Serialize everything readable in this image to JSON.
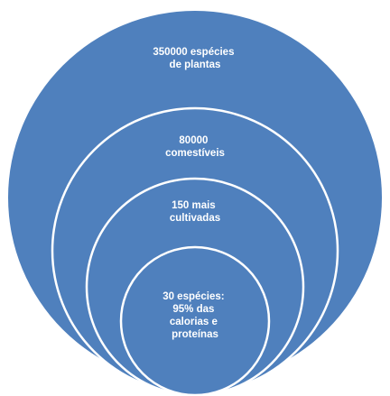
{
  "diagram": {
    "fill_color": "#4f80bd",
    "stroke_color": "#ffffff",
    "circles": [
      {
        "id": "all-plants",
        "lines": [
          "350000 espécies",
          "de plantas"
        ]
      },
      {
        "id": "edible",
        "lines": [
          "80000",
          "comestíveis"
        ]
      },
      {
        "id": "cultivated",
        "lines": [
          "150 mais",
          "cultivadas"
        ]
      },
      {
        "id": "staple",
        "lines": [
          "30 espécies:",
          "95%  das",
          "calorias e",
          "proteínas"
        ]
      }
    ]
  }
}
